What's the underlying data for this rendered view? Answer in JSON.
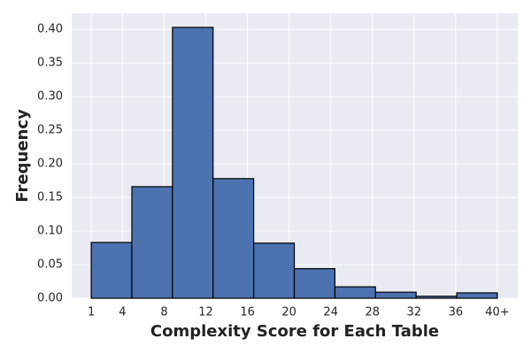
{
  "chart_data": {
    "type": "histogram",
    "xlabel": "Complexity Score for Each Table",
    "ylabel": "Frequency",
    "bins": [
      1,
      4.9,
      8.8,
      12.7,
      16.6,
      20.5,
      24.4,
      28.3,
      32.2,
      36.1,
      40
    ],
    "values": [
      0.083,
      0.166,
      0.403,
      0.178,
      0.082,
      0.044,
      0.017,
      0.009,
      0.003,
      0.008
    ],
    "color": "#4c72b0",
    "edgecolor": "#000000",
    "xlim": [
      -0.88,
      41.96
    ],
    "ylim": [
      0,
      0.424
    ],
    "xticks": [
      1,
      4,
      8,
      12,
      16,
      20,
      24,
      28,
      32,
      36,
      {
        "value": 40,
        "label": "40+"
      }
    ],
    "yticks": [
      {
        "value": 0,
        "label": "0.00"
      },
      {
        "value": 0.05,
        "label": "0.05"
      },
      {
        "value": 0.1,
        "label": "0.10"
      },
      {
        "value": 0.15,
        "label": "0.15"
      },
      {
        "value": 0.2,
        "label": "0.20"
      },
      {
        "value": 0.25,
        "label": "0.25"
      },
      {
        "value": 0.3,
        "label": "0.30"
      },
      {
        "value": 0.35,
        "label": "0.35"
      },
      {
        "value": 0.4,
        "label": "0.40"
      }
    ],
    "grid": true
  }
}
